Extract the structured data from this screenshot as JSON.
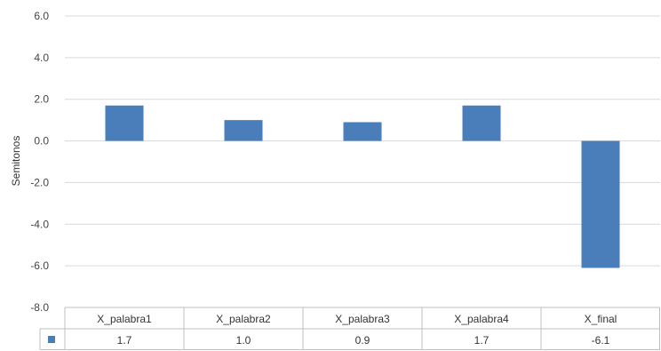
{
  "chart_data": {
    "type": "bar",
    "categories": [
      "X_palabra1",
      "X_palabra2",
      "X_palabra3",
      "X_palabra4",
      "X_final"
    ],
    "series": [
      {
        "values": [
          1.7,
          1.0,
          0.9,
          1.7,
          -6.1
        ],
        "color": "#4a7ebb"
      }
    ],
    "data_labels": [
      "1.7",
      "1.0",
      "0.9",
      "1.7",
      "-6.1"
    ],
    "title": "",
    "xlabel": "",
    "ylabel": "Semitonos",
    "ylim": [
      -8.0,
      6.0
    ],
    "yticks": [
      6.0,
      4.0,
      2.0,
      0.0,
      -2.0,
      -4.0,
      -6.0,
      -8.0
    ],
    "ytick_labels": [
      "6.0",
      "4.0",
      "2.0",
      "0.0",
      "-2.0",
      "-4.0",
      "-6.0",
      "-8.0"
    ],
    "grid": true,
    "legend": "data table with legend key",
    "colors": {
      "bar": "#4a7ebb",
      "grid": "#d9d9d9",
      "table_border": "#bfbfbf"
    }
  }
}
